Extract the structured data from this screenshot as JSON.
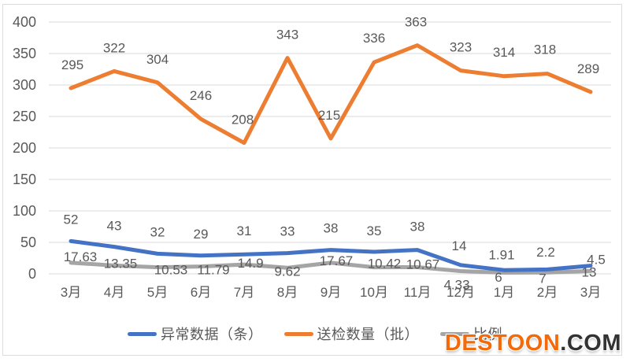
{
  "watermark": {
    "brand": "DESTOON",
    "suffix": ".COM",
    "brand_color": "#f26a0a",
    "suffix_color": "#333333"
  },
  "chart_data": {
    "type": "line",
    "categories": [
      "3月",
      "4月",
      "5月",
      "6月",
      "7月",
      "8月",
      "9月",
      "10月",
      "11月",
      "12月",
      "1月",
      "2月",
      "3月"
    ],
    "series": [
      {
        "name": "异常数据（条）",
        "color": "#4472C4",
        "values": [
          52,
          43,
          32,
          29,
          31,
          33,
          38,
          35,
          38,
          14,
          6,
          7,
          13
        ]
      },
      {
        "name": "送检数量（批）",
        "color": "#ED7D31",
        "values": [
          295,
          322,
          304,
          246,
          208,
          343,
          215,
          336,
          363,
          323,
          314,
          318,
          289
        ]
      },
      {
        "name": "比例",
        "color": "#A5A5A5",
        "values": [
          17.63,
          13.35,
          10.53,
          11.79,
          14.9,
          9.62,
          17.67,
          10.42,
          10.67,
          4.33,
          1.91,
          2.2,
          4.5
        ]
      }
    ],
    "title": "",
    "xlabel": "",
    "ylabel": "",
    "ylim": [
      0,
      400
    ],
    "ytick_step": 50,
    "grid": true,
    "grid_color": "#d9d9d9",
    "axis_label_color": "#595959",
    "data_label_color": "#595959",
    "legend_position": "bottom"
  }
}
